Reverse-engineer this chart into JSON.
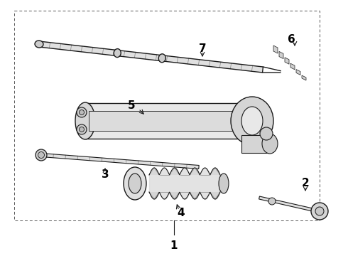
{
  "bg_color": "#ffffff",
  "line_color": "#1a1a1a",
  "label_color": "#000000",
  "label_fontsize": 11,
  "border_lw": 0.7,
  "part_lw": 1.0
}
